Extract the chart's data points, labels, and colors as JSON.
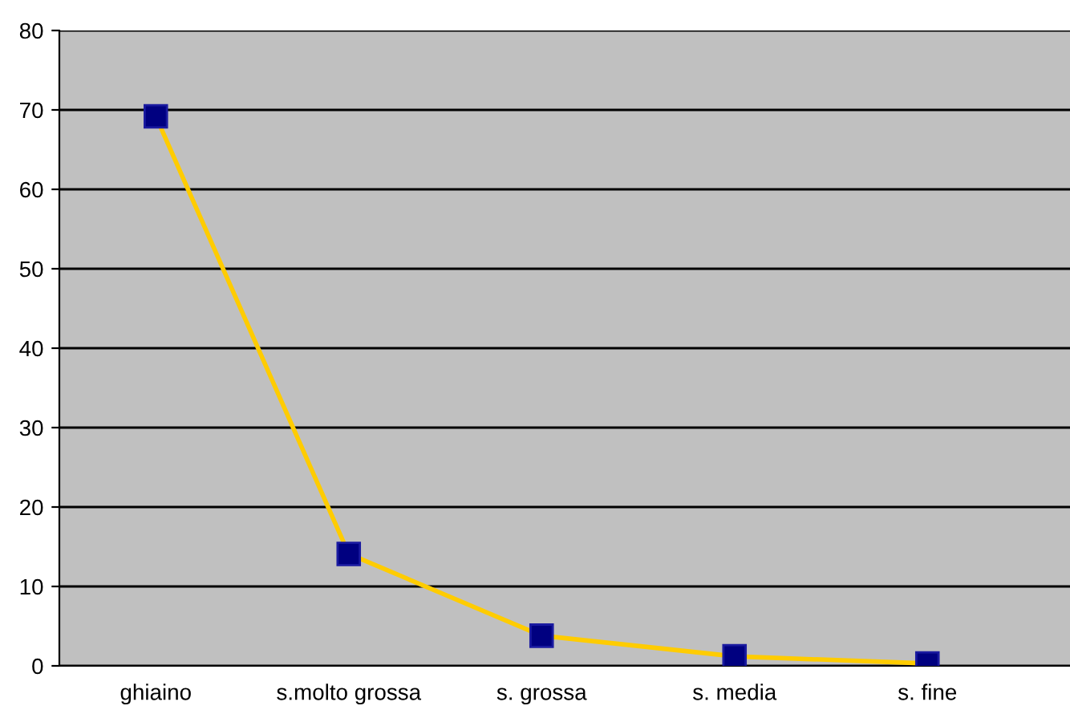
{
  "chart_data": {
    "type": "line",
    "categories": [
      "ghiaino",
      "s.molto grossa",
      "s. grossa",
      "s. media",
      "s. fine"
    ],
    "series": [
      {
        "color": "#ffcc00",
        "values": [
          69.2,
          14.1,
          3.8,
          1.2,
          0.3
        ]
      }
    ],
    "ylim": [
      0,
      80
    ],
    "yticks": [
      0,
      10,
      20,
      30,
      40,
      50,
      60,
      70,
      80
    ],
    "grid": "y",
    "marker": "square",
    "line_style": "solid"
  }
}
